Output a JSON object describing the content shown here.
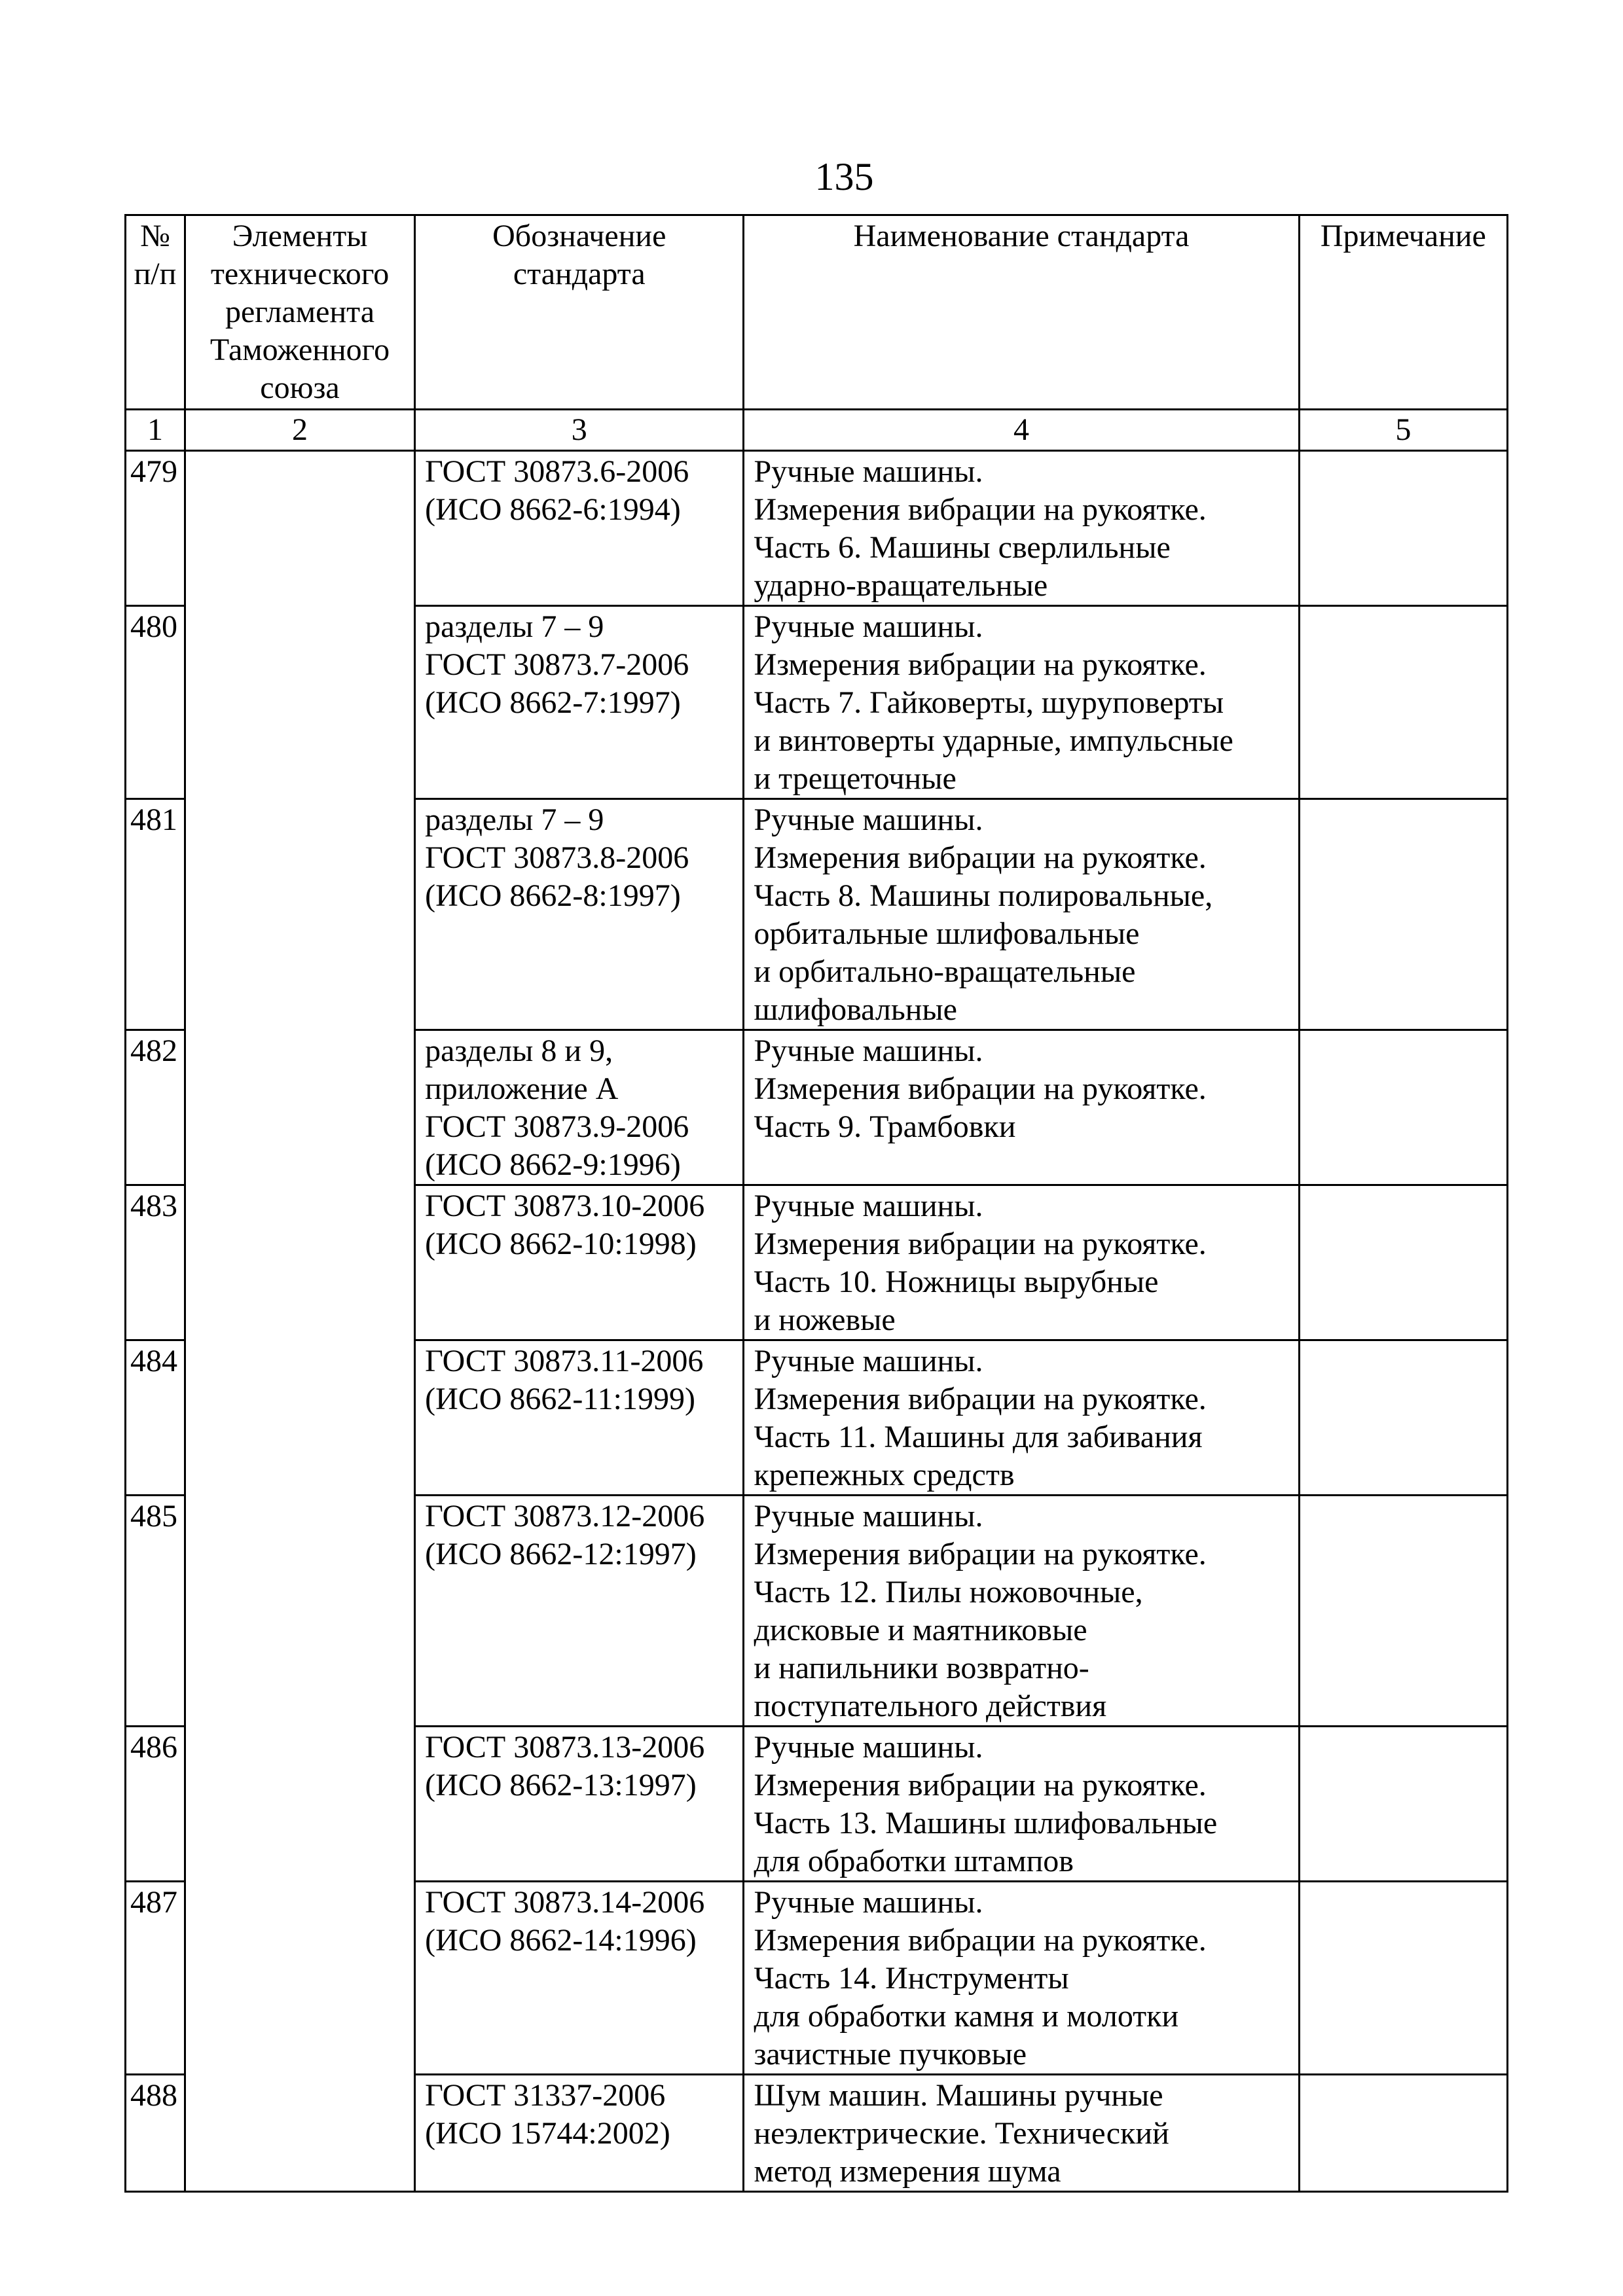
{
  "page_number": "135",
  "table": {
    "headers": [
      "№ п/п",
      "Элементы технического регламента Таможенного союза",
      "Обозначение стандарта",
      "Наименование стандарта",
      "Примечание"
    ],
    "header_lines": [
      [
        "№",
        "п/п"
      ],
      [
        "Элементы",
        "технического",
        "регламента",
        "Таможенного",
        "союза"
      ],
      [
        "Обозначение",
        "стандарта"
      ],
      [
        "Наименование стандарта"
      ],
      [
        "Примечание"
      ]
    ],
    "column_numbers": [
      "1",
      "2",
      "3",
      "4",
      "5"
    ],
    "rows": [
      {
        "num": "479",
        "element": "",
        "designation": [
          "ГОСТ 30873.6-2006",
          "(ИСО 8662-6:1994)"
        ],
        "name": [
          "Ручные машины.",
          "Измерения вибрации на рукоятке.",
          "Часть 6. Машины сверлильные",
          "ударно-вращательные"
        ],
        "note": ""
      },
      {
        "num": "480",
        "element": "",
        "designation": [
          "разделы 7 – 9",
          "ГОСТ 30873.7-2006",
          "(ИСО 8662-7:1997)"
        ],
        "name": [
          "Ручные машины.",
          "Измерения вибрации на рукоятке.",
          "Часть 7. Гайковерты, шуруповерты",
          "и винтоверты ударные, импульсные",
          "и трещеточные"
        ],
        "note": ""
      },
      {
        "num": "481",
        "element": "",
        "designation": [
          "разделы 7 – 9",
          "ГОСТ 30873.8-2006",
          "(ИСО 8662-8:1997)"
        ],
        "name": [
          "Ручные машины.",
          "Измерения вибрации на рукоятке.",
          "Часть 8. Машины полировальные,",
          "орбитальные шлифовальные",
          "и орбитально-вращательные",
          "шлифовальные"
        ],
        "note": ""
      },
      {
        "num": "482",
        "element": "",
        "designation": [
          "разделы 8 и 9,",
          "приложение А",
          "ГОСТ 30873.9-2006",
          "(ИСО 8662-9:1996)"
        ],
        "name": [
          "Ручные машины.",
          "Измерения вибрации на рукоятке.",
          "Часть 9. Трамбовки"
        ],
        "note": ""
      },
      {
        "num": "483",
        "element": "",
        "designation": [
          "ГОСТ 30873.10-2006",
          "(ИСО 8662-10:1998)"
        ],
        "name": [
          "Ручные машины.",
          "Измерения вибрации на рукоятке.",
          "Часть 10. Ножницы вырубные",
          "и ножевые"
        ],
        "note": ""
      },
      {
        "num": "484",
        "element": "",
        "designation": [
          "ГОСТ 30873.11-2006",
          "(ИСО 8662-11:1999)"
        ],
        "name": [
          "Ручные машины.",
          "Измерения вибрации на рукоятке.",
          "Часть 11. Машины для забивания",
          "крепежных средств"
        ],
        "note": ""
      },
      {
        "num": "485",
        "element": "",
        "designation": [
          "ГОСТ 30873.12-2006",
          "(ИСО 8662-12:1997)"
        ],
        "name": [
          "Ручные машины.",
          "Измерения вибрации на рукоятке.",
          "Часть 12. Пилы ножовочные,",
          "дисковые и маятниковые",
          "и напильники возвратно-",
          "поступательного действия"
        ],
        "note": ""
      },
      {
        "num": "486",
        "element": "",
        "designation": [
          "ГОСТ 30873.13-2006",
          "(ИСО 8662-13:1997)"
        ],
        "name": [
          "Ручные машины.",
          "Измерения вибрации на рукоятке.",
          "Часть 13. Машины шлифовальные",
          "для обработки штампов"
        ],
        "note": ""
      },
      {
        "num": "487",
        "element": "",
        "designation": [
          "ГОСТ 30873.14-2006",
          "(ИСО 8662-14:1996)"
        ],
        "name": [
          "Ручные машины.",
          "Измерения вибрации на рукоятке.",
          "Часть 14. Инструменты",
          "для обработки камня и молотки",
          "зачистные пучковые"
        ],
        "note": ""
      },
      {
        "num": "488",
        "element": "",
        "designation": [
          "ГОСТ 31337-2006",
          "(ИСО 15744:2002)"
        ],
        "name": [
          "Шум машин. Машины ручные",
          "неэлектрические. Технический",
          "метод измерения шума"
        ],
        "note": ""
      }
    ]
  }
}
